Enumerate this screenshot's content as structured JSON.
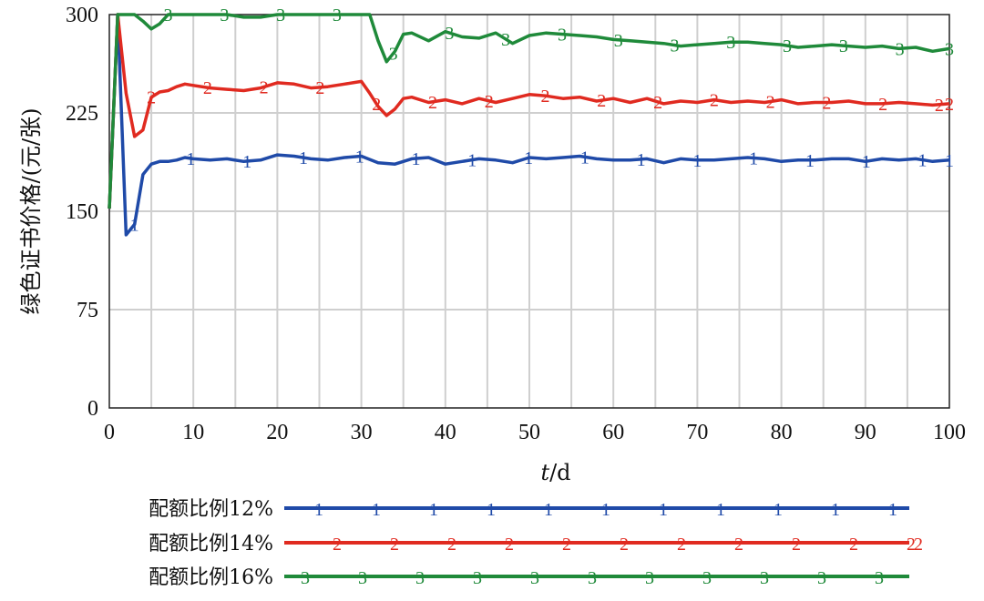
{
  "chart_data": {
    "type": "line",
    "xlabel_italic": "t",
    "xlabel_unit": "/d",
    "ylabel": "绿色证书价格/(元/张)",
    "xlim": [
      0,
      100
    ],
    "ylim": [
      0,
      300
    ],
    "x_ticks": [
      0,
      10,
      20,
      30,
      40,
      50,
      60,
      70,
      80,
      90,
      100
    ],
    "y_ticks": [
      0,
      75,
      150,
      225,
      300
    ],
    "grid": true,
    "legend_position": "bottom",
    "series": [
      {
        "name": "配额比例12%",
        "marker": "1",
        "color": "#1f4aa8",
        "x": [
          0,
          1,
          2,
          3,
          4,
          5,
          6,
          7,
          8,
          9,
          10,
          12,
          14,
          16,
          18,
          20,
          22,
          24,
          26,
          28,
          30,
          32,
          34,
          36,
          38,
          40,
          42,
          44,
          46,
          48,
          50,
          52,
          54,
          56,
          58,
          60,
          62,
          64,
          66,
          68,
          70,
          72,
          74,
          76,
          78,
          80,
          82,
          84,
          86,
          88,
          90,
          92,
          94,
          96,
          98,
          100
        ],
        "values": [
          152,
          300,
          132,
          140,
          178,
          186,
          188,
          188,
          189,
          191,
          190,
          189,
          190,
          188,
          189,
          193,
          192,
          190,
          189,
          191,
          192,
          187,
          186,
          190,
          191,
          186,
          188,
          190,
          189,
          187,
          191,
          190,
          191,
          192,
          190,
          189,
          189,
          190,
          187,
          190,
          189,
          189,
          190,
          191,
          190,
          188,
          189,
          189,
          190,
          190,
          188,
          190,
          189,
          190,
          188,
          189
        ]
      },
      {
        "name": "配额比例14%",
        "marker": "2",
        "color": "#e02a20",
        "x": [
          0,
          1,
          2,
          3,
          4,
          5,
          6,
          7,
          8,
          9,
          10,
          12,
          14,
          16,
          18,
          20,
          22,
          24,
          26,
          28,
          30,
          31,
          32,
          33,
          34,
          35,
          36,
          38,
          40,
          42,
          44,
          46,
          48,
          50,
          52,
          54,
          56,
          58,
          60,
          62,
          64,
          66,
          68,
          70,
          72,
          74,
          76,
          78,
          80,
          82,
          84,
          86,
          88,
          90,
          92,
          94,
          96,
          98,
          100
        ],
        "values": [
          152,
          300,
          240,
          207,
          212,
          237,
          241,
          242,
          245,
          247,
          246,
          244,
          243,
          242,
          244,
          248,
          247,
          244,
          245,
          247,
          249,
          240,
          230,
          223,
          228,
          236,
          237,
          233,
          235,
          232,
          236,
          233,
          236,
          239,
          238,
          236,
          237,
          234,
          236,
          233,
          236,
          232,
          234,
          233,
          235,
          233,
          234,
          233,
          235,
          232,
          233,
          233,
          234,
          232,
          232,
          233,
          232,
          231,
          232
        ]
      },
      {
        "name": "配额比例16%",
        "marker": "3",
        "color": "#1f8a3a",
        "x": [
          0,
          1,
          2,
          3,
          4,
          5,
          6,
          7,
          8,
          9,
          10,
          12,
          14,
          16,
          18,
          20,
          22,
          24,
          26,
          28,
          30,
          31,
          32,
          33,
          34,
          35,
          36,
          38,
          40,
          42,
          44,
          46,
          48,
          50,
          52,
          54,
          56,
          58,
          60,
          62,
          64,
          66,
          68,
          70,
          72,
          74,
          76,
          78,
          80,
          82,
          84,
          86,
          88,
          90,
          92,
          94,
          96,
          98,
          100
        ],
        "values": [
          152,
          300,
          300,
          300,
          295,
          289,
          293,
          300,
          300,
          300,
          300,
          300,
          300,
          298,
          298,
          300,
          300,
          300,
          300,
          300,
          300,
          300,
          280,
          264,
          272,
          285,
          286,
          280,
          287,
          283,
          282,
          286,
          278,
          284,
          286,
          285,
          284,
          283,
          281,
          280,
          279,
          278,
          276,
          277,
          278,
          279,
          279,
          278,
          277,
          275,
          276,
          277,
          276,
          275,
          276,
          274,
          275,
          272,
          274
        ]
      }
    ]
  }
}
